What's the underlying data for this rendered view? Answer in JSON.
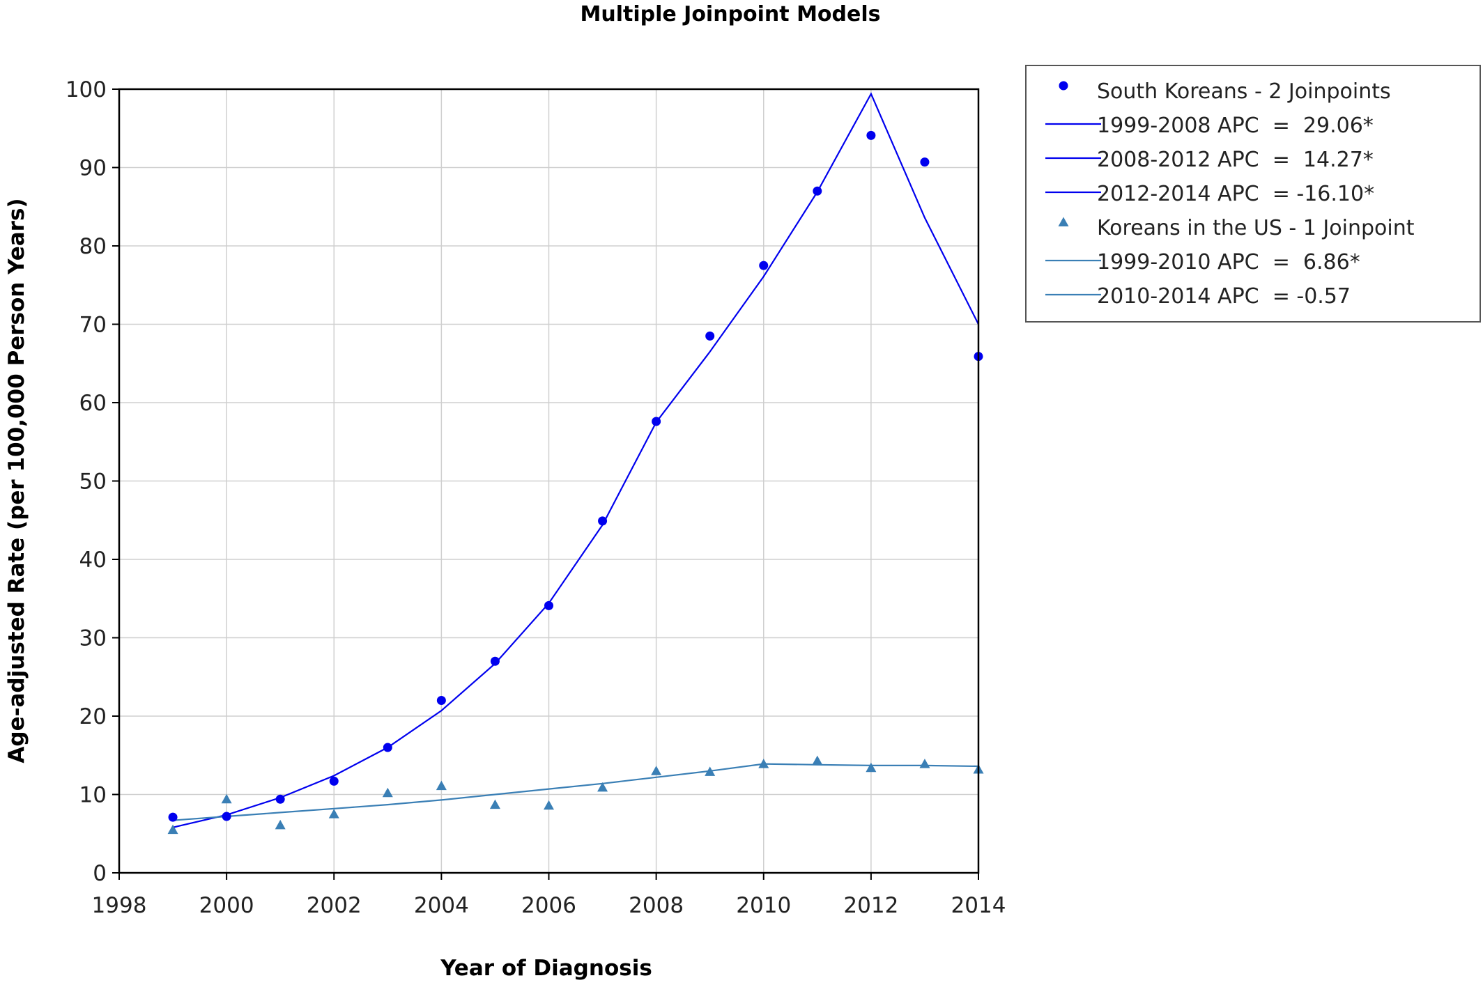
{
  "chart_data": {
    "type": "line",
    "title": "Multiple Joinpoint Models",
    "xlabel": "Year of Diagnosis",
    "ylabel": "Age-adjusted Rate (per 100,000 Person Years)",
    "xlim": [
      1998,
      2014
    ],
    "ylim": [
      0,
      100
    ],
    "x_ticks": [
      1998,
      2000,
      2002,
      2004,
      2006,
      2008,
      2010,
      2012,
      2014
    ],
    "y_ticks": [
      0,
      10,
      20,
      30,
      40,
      50,
      60,
      70,
      80,
      90,
      100
    ],
    "grid": true,
    "legend_position": "right",
    "series": [
      {
        "name": "South Koreans - 2 Joinpoints",
        "kind": "observed",
        "marker": "circle",
        "color": "#0000ee",
        "x": [
          1999,
          2000,
          2001,
          2002,
          2003,
          2004,
          2005,
          2006,
          2007,
          2008,
          2009,
          2010,
          2011,
          2012,
          2013,
          2014
        ],
        "values": [
          7.1,
          7.2,
          9.4,
          11.7,
          16.0,
          22.0,
          27.0,
          34.1,
          44.9,
          57.6,
          68.5,
          77.5,
          87.0,
          94.1,
          90.7,
          65.9
        ]
      },
      {
        "name": "South Koreans - 2 Joinpoints fitted",
        "kind": "fitted",
        "color": "#0000ee",
        "x": [
          1999,
          2000,
          2001,
          2002,
          2003,
          2004,
          2005,
          2006,
          2007,
          2008,
          2009,
          2010,
          2011,
          2012,
          2013,
          2014
        ],
        "values": [
          5.8,
          7.4,
          9.6,
          12.4,
          16.0,
          20.7,
          26.7,
          34.4,
          44.4,
          57.5,
          66.5,
          76.1,
          86.9,
          99.4,
          83.6,
          70.0
        ]
      },
      {
        "name": "Koreans in the US - 1 Joinpoint",
        "kind": "observed",
        "marker": "triangle",
        "color": "#3a7fb5",
        "x": [
          1999,
          2000,
          2001,
          2002,
          2003,
          2004,
          2005,
          2006,
          2007,
          2008,
          2009,
          2010,
          2011,
          2012,
          2013,
          2014
        ],
        "values": [
          5.5,
          9.4,
          6.1,
          7.5,
          10.2,
          11.1,
          8.7,
          8.6,
          10.9,
          13.0,
          12.9,
          13.9,
          14.3,
          13.4,
          13.9,
          13.2
        ]
      },
      {
        "name": "Koreans in the US - 1 Joinpoint fitted",
        "kind": "fitted",
        "color": "#3a7fb5",
        "x": [
          1999,
          2000,
          2001,
          2002,
          2003,
          2004,
          2005,
          2006,
          2007,
          2008,
          2009,
          2010,
          2011,
          2012,
          2013,
          2014
        ],
        "values": [
          6.7,
          7.2,
          7.7,
          8.2,
          8.7,
          9.3,
          10.0,
          10.7,
          11.4,
          12.2,
          13.0,
          13.9,
          13.8,
          13.7,
          13.7,
          13.6
        ]
      }
    ],
    "legend": [
      {
        "label": "South Koreans - 2 Joinpoints",
        "symbol": "circle",
        "color": "#0000ee"
      },
      {
        "label": "1999-2008 APC  =  29.06*",
        "symbol": "line",
        "color": "#0000ee"
      },
      {
        "label": "2008-2012 APC  =  14.27*",
        "symbol": "line",
        "color": "#0000ee"
      },
      {
        "label": "2012-2014 APC  = -16.10*",
        "symbol": "line",
        "color": "#0000ee"
      },
      {
        "label": "Koreans in the US - 1 Joinpoint",
        "symbol": "triangle",
        "color": "#3a7fb5"
      },
      {
        "label": "1999-2010 APC  =  6.86*",
        "symbol": "line",
        "color": "#3a7fb5"
      },
      {
        "label": "2010-2014 APC  = -0.57",
        "symbol": "line",
        "color": "#3a7fb5"
      }
    ]
  }
}
